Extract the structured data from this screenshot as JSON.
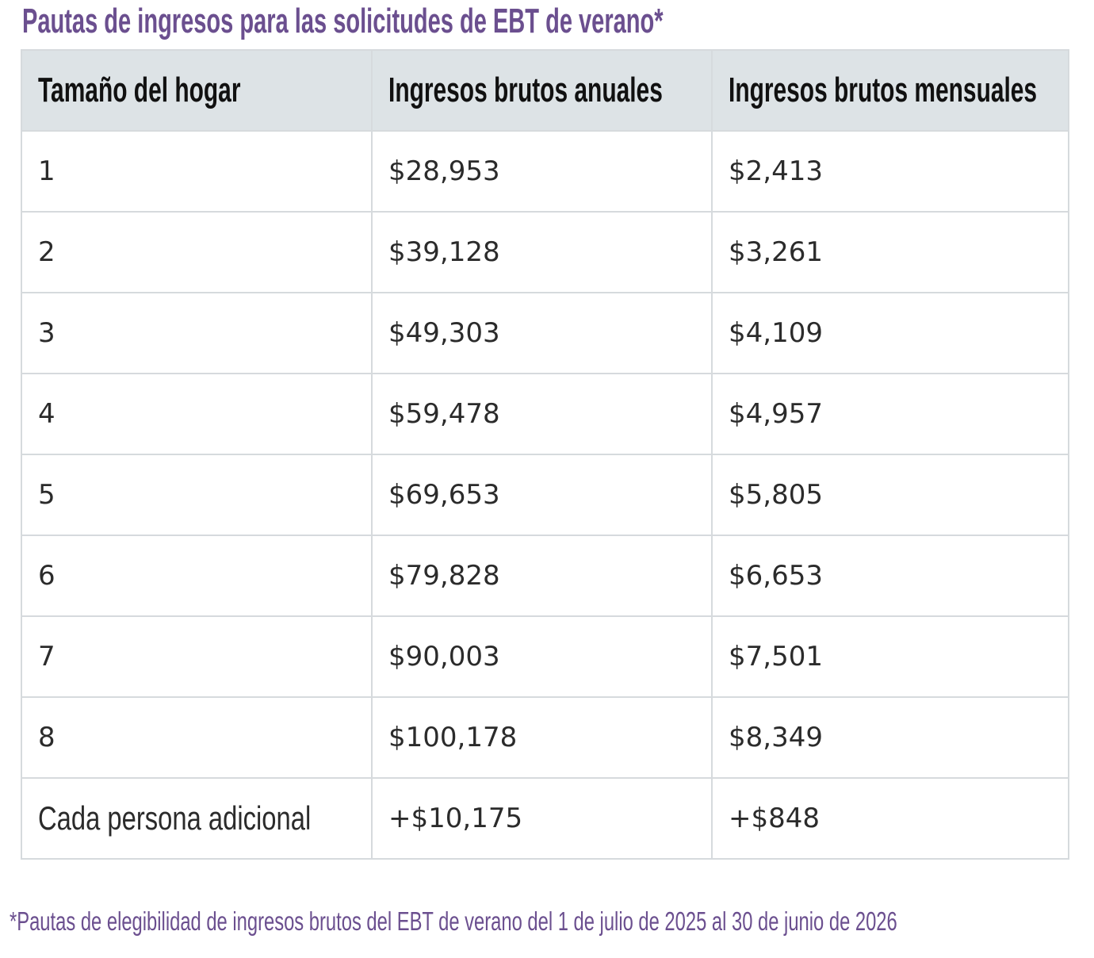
{
  "title": "Pautas de ingresos para las solicitudes de EBT de verano*",
  "colors": {
    "accent_purple": "#6b4f8f",
    "header_bg": "#dde3e6",
    "border": "#d6dadd"
  },
  "table": {
    "headers": [
      "Tamaño del hogar",
      "Ingresos brutos anuales",
      "Ingresos brutos mensuales"
    ],
    "rows": [
      [
        "1",
        "$28,953",
        "$2,413"
      ],
      [
        "2",
        "$39,128",
        "$3,261"
      ],
      [
        "3",
        "$49,303",
        "$4,109"
      ],
      [
        "4",
        "$59,478",
        "$4,957"
      ],
      [
        "5",
        "$69,653",
        "$5,805"
      ],
      [
        "6",
        "$79,828",
        "$6,653"
      ],
      [
        "7",
        "$90,003",
        "$7,501"
      ],
      [
        "8",
        "$100,178",
        "$8,349"
      ],
      [
        "Cada persona adicional",
        "+$10,175",
        "+$848"
      ]
    ]
  },
  "footnote": "*Pautas de elegibilidad de ingresos brutos del EBT de verano del 1 de julio de 2025 al 30 de junio de 2026"
}
